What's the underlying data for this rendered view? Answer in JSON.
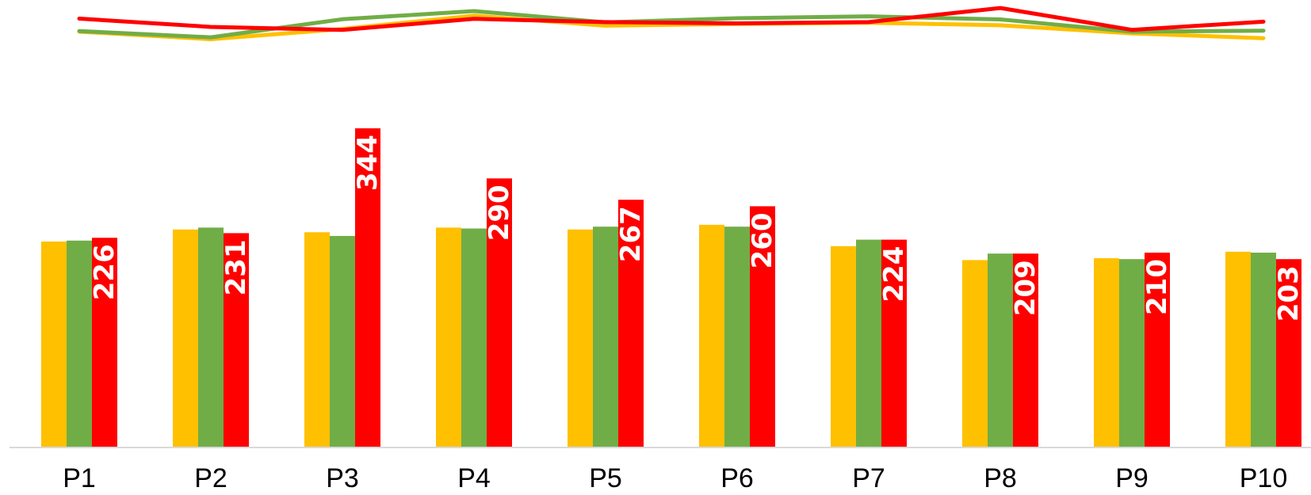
{
  "chart_data": {
    "type": "bar",
    "categories": [
      "P1",
      "P2",
      "P3",
      "P4",
      "P5",
      "P6",
      "P7",
      "P8",
      "P9",
      "P10"
    ],
    "series": [
      {
        "color": "#FFC000",
        "values": [
          222,
          235,
          232,
          237,
          235,
          240,
          217,
          202,
          204,
          211
        ]
      },
      {
        "color": "#70AD47",
        "values": [
          223,
          237,
          228,
          236,
          238,
          238,
          224,
          209,
          203,
          210
        ]
      },
      {
        "color": "#FF0000",
        "values": [
          226,
          231,
          344,
          290,
          267,
          260,
          224,
          209,
          210,
          203
        ],
        "data_labels": [
          "226",
          "231",
          "344",
          "290",
          "267",
          "260",
          "224",
          "209",
          "210",
          "203"
        ]
      }
    ],
    "line_series": [
      {
        "color": "#FFC000",
        "values": [
          12.2,
          15.8,
          10.9,
          4.5,
          9.3,
          8.5,
          7.9,
          9.1,
          13.0,
          15.3
        ]
      },
      {
        "color": "#70AD47",
        "values": [
          11.9,
          14.9,
          6.2,
          2.3,
          7.7,
          5.7,
          4.8,
          6.3,
          12.2,
          11.7
        ]
      },
      {
        "color": "#FF0000",
        "values": [
          5.9,
          9.9,
          11.3,
          6.0,
          7.6,
          8.2,
          7.6,
          0.8,
          11.3,
          7.4
        ]
      }
    ],
    "ylim": [
      0,
      350
    ],
    "legend": "none",
    "grid": false
  }
}
